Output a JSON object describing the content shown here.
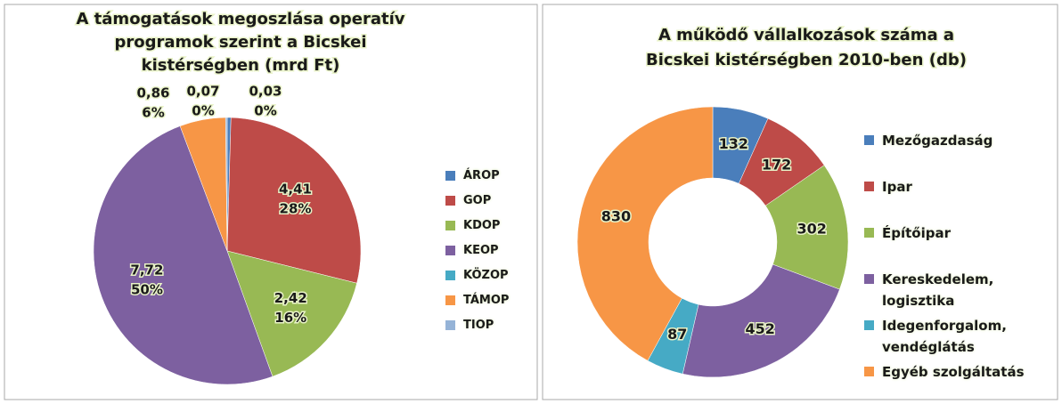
{
  "chart_data": [
    {
      "type": "pie",
      "title": [
        "A támogatások megoszlása operatív",
        "programok szerint a Bicskei",
        "kistérségben (mrd Ft)"
      ],
      "categories": [
        "ÁROP",
        "GOP",
        "KDOP",
        "KEOP",
        "KÖZOP",
        "TÁMOP",
        "TIOP"
      ],
      "values": [
        0.07,
        4.41,
        2.42,
        7.72,
        null,
        0.86,
        0.03
      ],
      "value_labels": [
        "0,07",
        "4,41",
        "2,42",
        "7,72",
        null,
        "0,86",
        "0,03"
      ],
      "percents": [
        0,
        28,
        16,
        50,
        null,
        6,
        0
      ],
      "percent_labels": [
        "0%",
        "28%",
        "16%",
        "50%",
        null,
        "6%",
        "0%"
      ],
      "colors": [
        "#4a7ebb",
        "#be4b48",
        "#98b954",
        "#7d60a0",
        "#46aac5",
        "#f79646",
        "#95b3d7"
      ]
    },
    {
      "type": "donut",
      "title": [
        "A működő vállalkozások száma a",
        "Bicskei kistérségben 2010-ben (db)"
      ],
      "categories": [
        "Mezőgazdaság",
        "Ipar",
        "Építőipar",
        "Kereskedelem, logisztika",
        "Idegenforgalom, vendéglátás",
        "Egyéb szolgáltatás"
      ],
      "values": [
        132,
        172,
        302,
        452,
        87,
        830
      ],
      "colors": [
        "#4a7ebb",
        "#be4b48",
        "#98b954",
        "#7d60a0",
        "#46aac5",
        "#f79646"
      ]
    }
  ]
}
